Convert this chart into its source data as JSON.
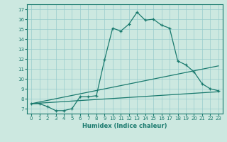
{
  "title": "",
  "xlabel": "Humidex (Indice chaleur)",
  "bg_color": "#cce8e0",
  "line_color": "#1a7a6e",
  "grid_color": "#99cccc",
  "xlim": [
    -0.5,
    23.5
  ],
  "ylim": [
    6.5,
    17.5
  ],
  "xticks": [
    0,
    1,
    2,
    3,
    4,
    5,
    6,
    7,
    8,
    9,
    10,
    11,
    12,
    13,
    14,
    15,
    16,
    17,
    18,
    19,
    20,
    21,
    22,
    23
  ],
  "yticks": [
    7,
    8,
    9,
    10,
    11,
    12,
    13,
    14,
    15,
    16,
    17
  ],
  "line1_x": [
    0,
    1,
    2,
    3,
    4,
    5,
    6,
    7,
    8,
    9,
    10,
    11,
    12,
    13,
    14,
    15,
    16,
    17,
    18,
    19,
    20,
    21,
    22,
    23
  ],
  "line1_y": [
    7.5,
    7.5,
    7.2,
    6.8,
    6.8,
    7.0,
    8.2,
    8.2,
    8.3,
    11.9,
    15.1,
    14.8,
    15.5,
    16.7,
    15.9,
    16.0,
    15.4,
    15.1,
    11.8,
    11.4,
    10.7,
    9.5,
    9.0,
    8.8
  ],
  "line2_x": [
    0,
    23
  ],
  "line2_y": [
    7.5,
    11.3
  ],
  "line3_x": [
    0,
    23
  ],
  "line3_y": [
    7.5,
    8.7
  ]
}
